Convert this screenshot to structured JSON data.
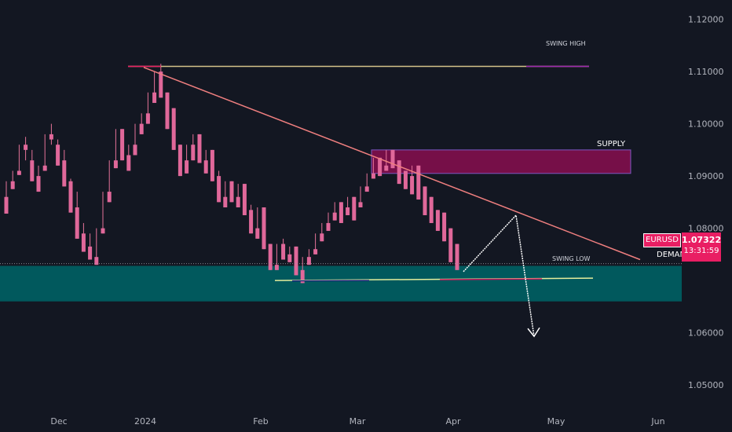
{
  "chart_data": {
    "type": "candlestick",
    "symbol": "EURUSD",
    "y_ticks": [
      "1.12000",
      "1.11000",
      "1.10000",
      "1.09000",
      "1.08000",
      "1.06000",
      "1.05000"
    ],
    "y_tick_values": [
      1.12,
      1.11,
      1.1,
      1.09,
      1.08,
      1.06,
      1.05
    ],
    "x_ticks": [
      "Dec",
      "2024",
      "Feb",
      "Mar",
      "Apr",
      "May",
      "Jun"
    ],
    "ylim": [
      1.044,
      1.1225
    ],
    "last_price": "1.07322",
    "countdown": "13:31:59",
    "zones": [
      {
        "name": "SUPPLY",
        "low": 1.0905,
        "high": 1.095,
        "color": "#880e4f"
      },
      {
        "name": "DEMAND",
        "low": 1.066,
        "high": 1.0728,
        "color": "#006064"
      }
    ],
    "levels": [
      {
        "name": "SWING HIGH",
        "price": 1.111
      },
      {
        "name": "SWING LOW",
        "price": 1.07
      }
    ],
    "trendline": {
      "from_price": 1.1108,
      "to_price": 1.074
    },
    "projection": [
      1.0717,
      1.0825,
      1.0593
    ],
    "candles": [
      [
        1.086,
        1.089,
        1.0845,
        1.0828
      ],
      [
        1.089,
        1.091,
        1.088,
        1.0875
      ],
      [
        1.091,
        1.096,
        1.0905,
        1.0902
      ],
      [
        1.096,
        1.0975,
        1.093,
        1.095
      ],
      [
        1.093,
        1.095,
        1.09,
        1.089
      ],
      [
        1.09,
        1.092,
        1.088,
        1.087
      ],
      [
        1.092,
        1.098,
        1.0915,
        1.091
      ],
      [
        1.098,
        1.1,
        1.096,
        1.097
      ],
      [
        1.096,
        1.097,
        1.093,
        1.092
      ],
      [
        1.093,
        1.095,
        1.089,
        1.088
      ],
      [
        1.089,
        1.0895,
        1.084,
        1.083
      ],
      [
        1.084,
        1.087,
        1.079,
        1.078
      ],
      [
        1.079,
        1.081,
        1.0765,
        1.0755
      ],
      [
        1.0765,
        1.079,
        1.0745,
        1.074
      ],
      [
        1.0745,
        1.08,
        1.074,
        1.073
      ],
      [
        1.08,
        1.087,
        1.0795,
        1.079
      ],
      [
        1.087,
        1.093,
        1.086,
        1.085
      ],
      [
        1.093,
        1.099,
        1.092,
        1.0915
      ],
      [
        1.099,
        1.098,
        1.094,
        1.093
      ],
      [
        1.094,
        1.096,
        1.092,
        1.091
      ],
      [
        1.096,
        1.1,
        1.095,
        1.094
      ],
      [
        1.1,
        1.102,
        1.099,
        1.098
      ],
      [
        1.102,
        1.106,
        1.101,
        1.1
      ],
      [
        1.106,
        1.11,
        1.105,
        1.104
      ],
      [
        1.11,
        1.1115,
        1.106,
        1.105
      ],
      [
        1.106,
        1.103,
        1.1,
        1.099
      ],
      [
        1.103,
        1.099,
        1.096,
        1.095
      ],
      [
        1.096,
        1.093,
        1.091,
        1.09
      ],
      [
        1.093,
        1.096,
        1.0915,
        1.0905
      ],
      [
        1.096,
        1.098,
        1.094,
        1.093
      ],
      [
        1.098,
        1.096,
        1.093,
        1.0925
      ],
      [
        1.093,
        1.095,
        1.0915,
        1.0905
      ],
      [
        1.095,
        1.094,
        1.09,
        1.089
      ],
      [
        1.09,
        1.091,
        1.086,
        1.085
      ],
      [
        1.086,
        1.089,
        1.085,
        1.084
      ],
      [
        1.089,
        1.088,
        1.086,
        1.085
      ],
      [
        1.086,
        1.0885,
        1.085,
        1.084
      ],
      [
        1.0885,
        1.088,
        1.0835,
        1.0825
      ],
      [
        1.0835,
        1.0845,
        1.08,
        1.079
      ],
      [
        1.08,
        1.084,
        1.079,
        1.078
      ],
      [
        1.084,
        1.081,
        1.077,
        1.076
      ],
      [
        1.077,
        1.074,
        1.073,
        1.072
      ],
      [
        1.073,
        1.077,
        1.0728,
        1.072
      ],
      [
        1.077,
        1.078,
        1.075,
        1.074
      ],
      [
        1.075,
        1.0765,
        1.074,
        1.0735
      ],
      [
        1.0765,
        1.076,
        1.072,
        1.071
      ],
      [
        1.072,
        1.0745,
        1.07,
        1.0695
      ],
      [
        1.0745,
        1.076,
        1.0735,
        1.073
      ],
      [
        1.076,
        1.079,
        1.0755,
        1.075
      ],
      [
        1.079,
        1.081,
        1.078,
        1.0775
      ],
      [
        1.081,
        1.083,
        1.08,
        1.0795
      ],
      [
        1.083,
        1.085,
        1.082,
        1.0815
      ],
      [
        1.085,
        1.084,
        1.0815,
        1.081
      ],
      [
        1.084,
        1.086,
        1.083,
        1.0825
      ],
      [
        1.086,
        1.085,
        1.082,
        1.0815
      ],
      [
        1.085,
        1.088,
        1.0845,
        1.084
      ],
      [
        1.088,
        1.0905,
        1.0875,
        1.087
      ],
      [
        1.0905,
        1.0935,
        1.09,
        1.0895
      ],
      [
        1.0935,
        1.092,
        1.091,
        1.09
      ],
      [
        1.092,
        1.095,
        1.0915,
        1.091
      ],
      [
        1.095,
        1.093,
        1.092,
        1.0915
      ],
      [
        1.093,
        1.091,
        1.089,
        1.0885
      ],
      [
        1.091,
        1.09,
        1.088,
        1.0875
      ],
      [
        1.09,
        1.092,
        1.087,
        1.0865
      ],
      [
        1.092,
        1.088,
        1.086,
        1.0855
      ],
      [
        1.088,
        1.086,
        1.083,
        1.0825
      ],
      [
        1.086,
        1.0835,
        1.0815,
        1.081
      ],
      [
        1.0835,
        1.083,
        1.08,
        1.0795
      ],
      [
        1.083,
        1.08,
        1.078,
        1.0775
      ],
      [
        1.08,
        1.077,
        1.074,
        1.0735
      ],
      [
        1.077,
        1.075,
        1.0725,
        1.072
      ]
    ]
  },
  "labels": {
    "swing_high": "SWING HIGH",
    "swing_low": "SWING LOW",
    "supply": "SUPPLY",
    "demand": "DEMAND",
    "symbol": "EURUSD",
    "price": "1.07322",
    "countdown": "13:31:59"
  }
}
